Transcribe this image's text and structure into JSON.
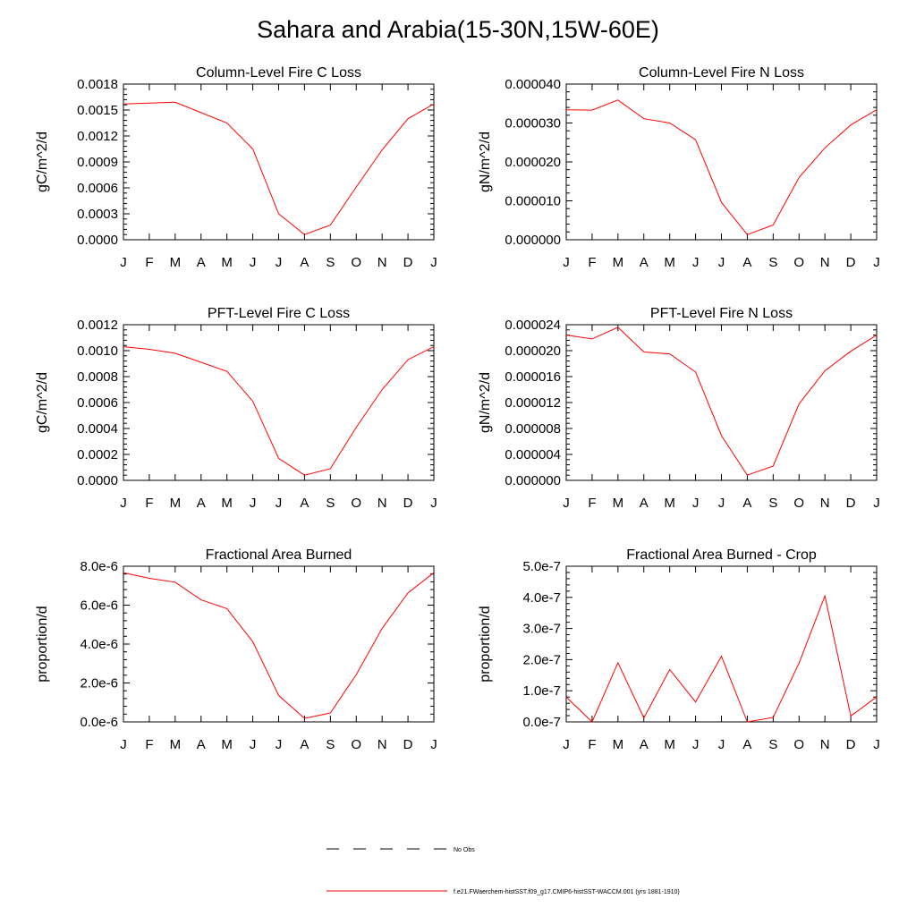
{
  "title": "Sahara and Arabia(15-30N,15W-60E)",
  "months": [
    "J",
    "F",
    "M",
    "A",
    "M",
    "J",
    "J",
    "A",
    "S",
    "O",
    "N",
    "D",
    "J"
  ],
  "line_color": "#ff0000",
  "legend": {
    "entries": [
      {
        "label": "No Obs",
        "style": "dashed",
        "color": "#000000"
      },
      {
        "label": "f.e21.FWaerchem-histSST.f09_g17.CMIP6-histSST-WACCM.001 (yrs 1881-1910)",
        "style": "solid",
        "color": "#ff0000"
      }
    ]
  },
  "chart_data": [
    {
      "type": "line",
      "title": "Column-Level Fire C Loss",
      "ylabel": "gC/m^2/d",
      "ylim": [
        0,
        0.0018
      ],
      "yticks": [
        "0.0000",
        "0.0003",
        "0.0006",
        "0.0009",
        "0.0012",
        "0.0015",
        "0.0018"
      ],
      "series": [
        {
          "values": [
            0.00157,
            0.00158,
            0.00159,
            0.00147,
            0.00135,
            0.00105,
            0.0003,
            6e-05,
            0.00017,
            0.00061,
            0.00104,
            0.0014,
            0.00157
          ]
        }
      ]
    },
    {
      "type": "line",
      "title": "Column-Level Fire N Loss",
      "ylabel": "gN/m^2/d",
      "ylim": [
        0,
        4e-05
      ],
      "yticks": [
        "0.000000",
        "0.000010",
        "0.000020",
        "0.000030",
        "0.000040"
      ],
      "series": [
        {
          "values": [
            3.34e-05,
            3.33e-05,
            3.59e-05,
            3.11e-05,
            3e-05,
            2.57e-05,
            9.6e-06,
            1.3e-06,
            3.8e-06,
            1.6e-05,
            2.36e-05,
            2.95e-05,
            3.34e-05
          ]
        }
      ]
    },
    {
      "type": "line",
      "title": "PFT-Level Fire C Loss",
      "ylabel": "gC/m^2/d",
      "ylim": [
        0,
        0.0012
      ],
      "yticks": [
        "0.0000",
        "0.0002",
        "0.0004",
        "0.0006",
        "0.0008",
        "0.0010",
        "0.0012"
      ],
      "series": [
        {
          "values": [
            0.00103,
            0.00101,
            0.00098,
            0.00091,
            0.00084,
            0.00061,
            0.00017,
            4e-05,
            9e-05,
            0.00041,
            0.0007,
            0.00093,
            0.00103
          ]
        }
      ]
    },
    {
      "type": "line",
      "title": "PFT-Level Fire N Loss",
      "ylabel": "gN/m^2/d",
      "ylim": [
        0,
        2.4e-05
      ],
      "yticks": [
        "0.000000",
        "0.000004",
        "0.000008",
        "0.000012",
        "0.000016",
        "0.000020",
        "0.000024"
      ],
      "series": [
        {
          "values": [
            2.24e-05,
            2.18e-05,
            2.36e-05,
            1.98e-05,
            1.95e-05,
            1.67e-05,
            6.9e-06,
            8e-07,
            2.2e-06,
            1.18e-05,
            1.69e-05,
            1.99e-05,
            2.24e-05
          ]
        }
      ]
    },
    {
      "type": "line",
      "title": "Fractional Area Burned",
      "ylabel": "proportion/d",
      "ylim": [
        0,
        8e-06
      ],
      "yticks": [
        "0.0e-6",
        "2.0e-6",
        "4.0e-6",
        "6.0e-6",
        "8.0e-6"
      ],
      "series": [
        {
          "values": [
            7.67e-06,
            7.38e-06,
            7.18e-06,
            6.27e-06,
            5.82e-06,
            4.12e-06,
            1.36e-06,
            1.8e-07,
            4.6e-07,
            2.43e-06,
            4.81e-06,
            6.63e-06,
            7.67e-06
          ]
        }
      ]
    },
    {
      "type": "line",
      "title": "Fractional Area Burned - Crop",
      "ylabel": "proportion/d",
      "ylim": [
        0,
        5e-07
      ],
      "yticks": [
        "0.0e-7",
        "1.0e-7",
        "2.0e-7",
        "3.0e-7",
        "4.0e-7",
        "5.0e-7"
      ],
      "series": [
        {
          "values": [
            8e-08,
            0.0,
            1.9e-07,
            1.3e-08,
            1.68e-07,
            6.4e-08,
            2.11e-07,
            0.0,
            1.4e-08,
            1.89e-07,
            4.05e-07,
            1.9e-08,
            8e-08
          ]
        }
      ]
    }
  ]
}
